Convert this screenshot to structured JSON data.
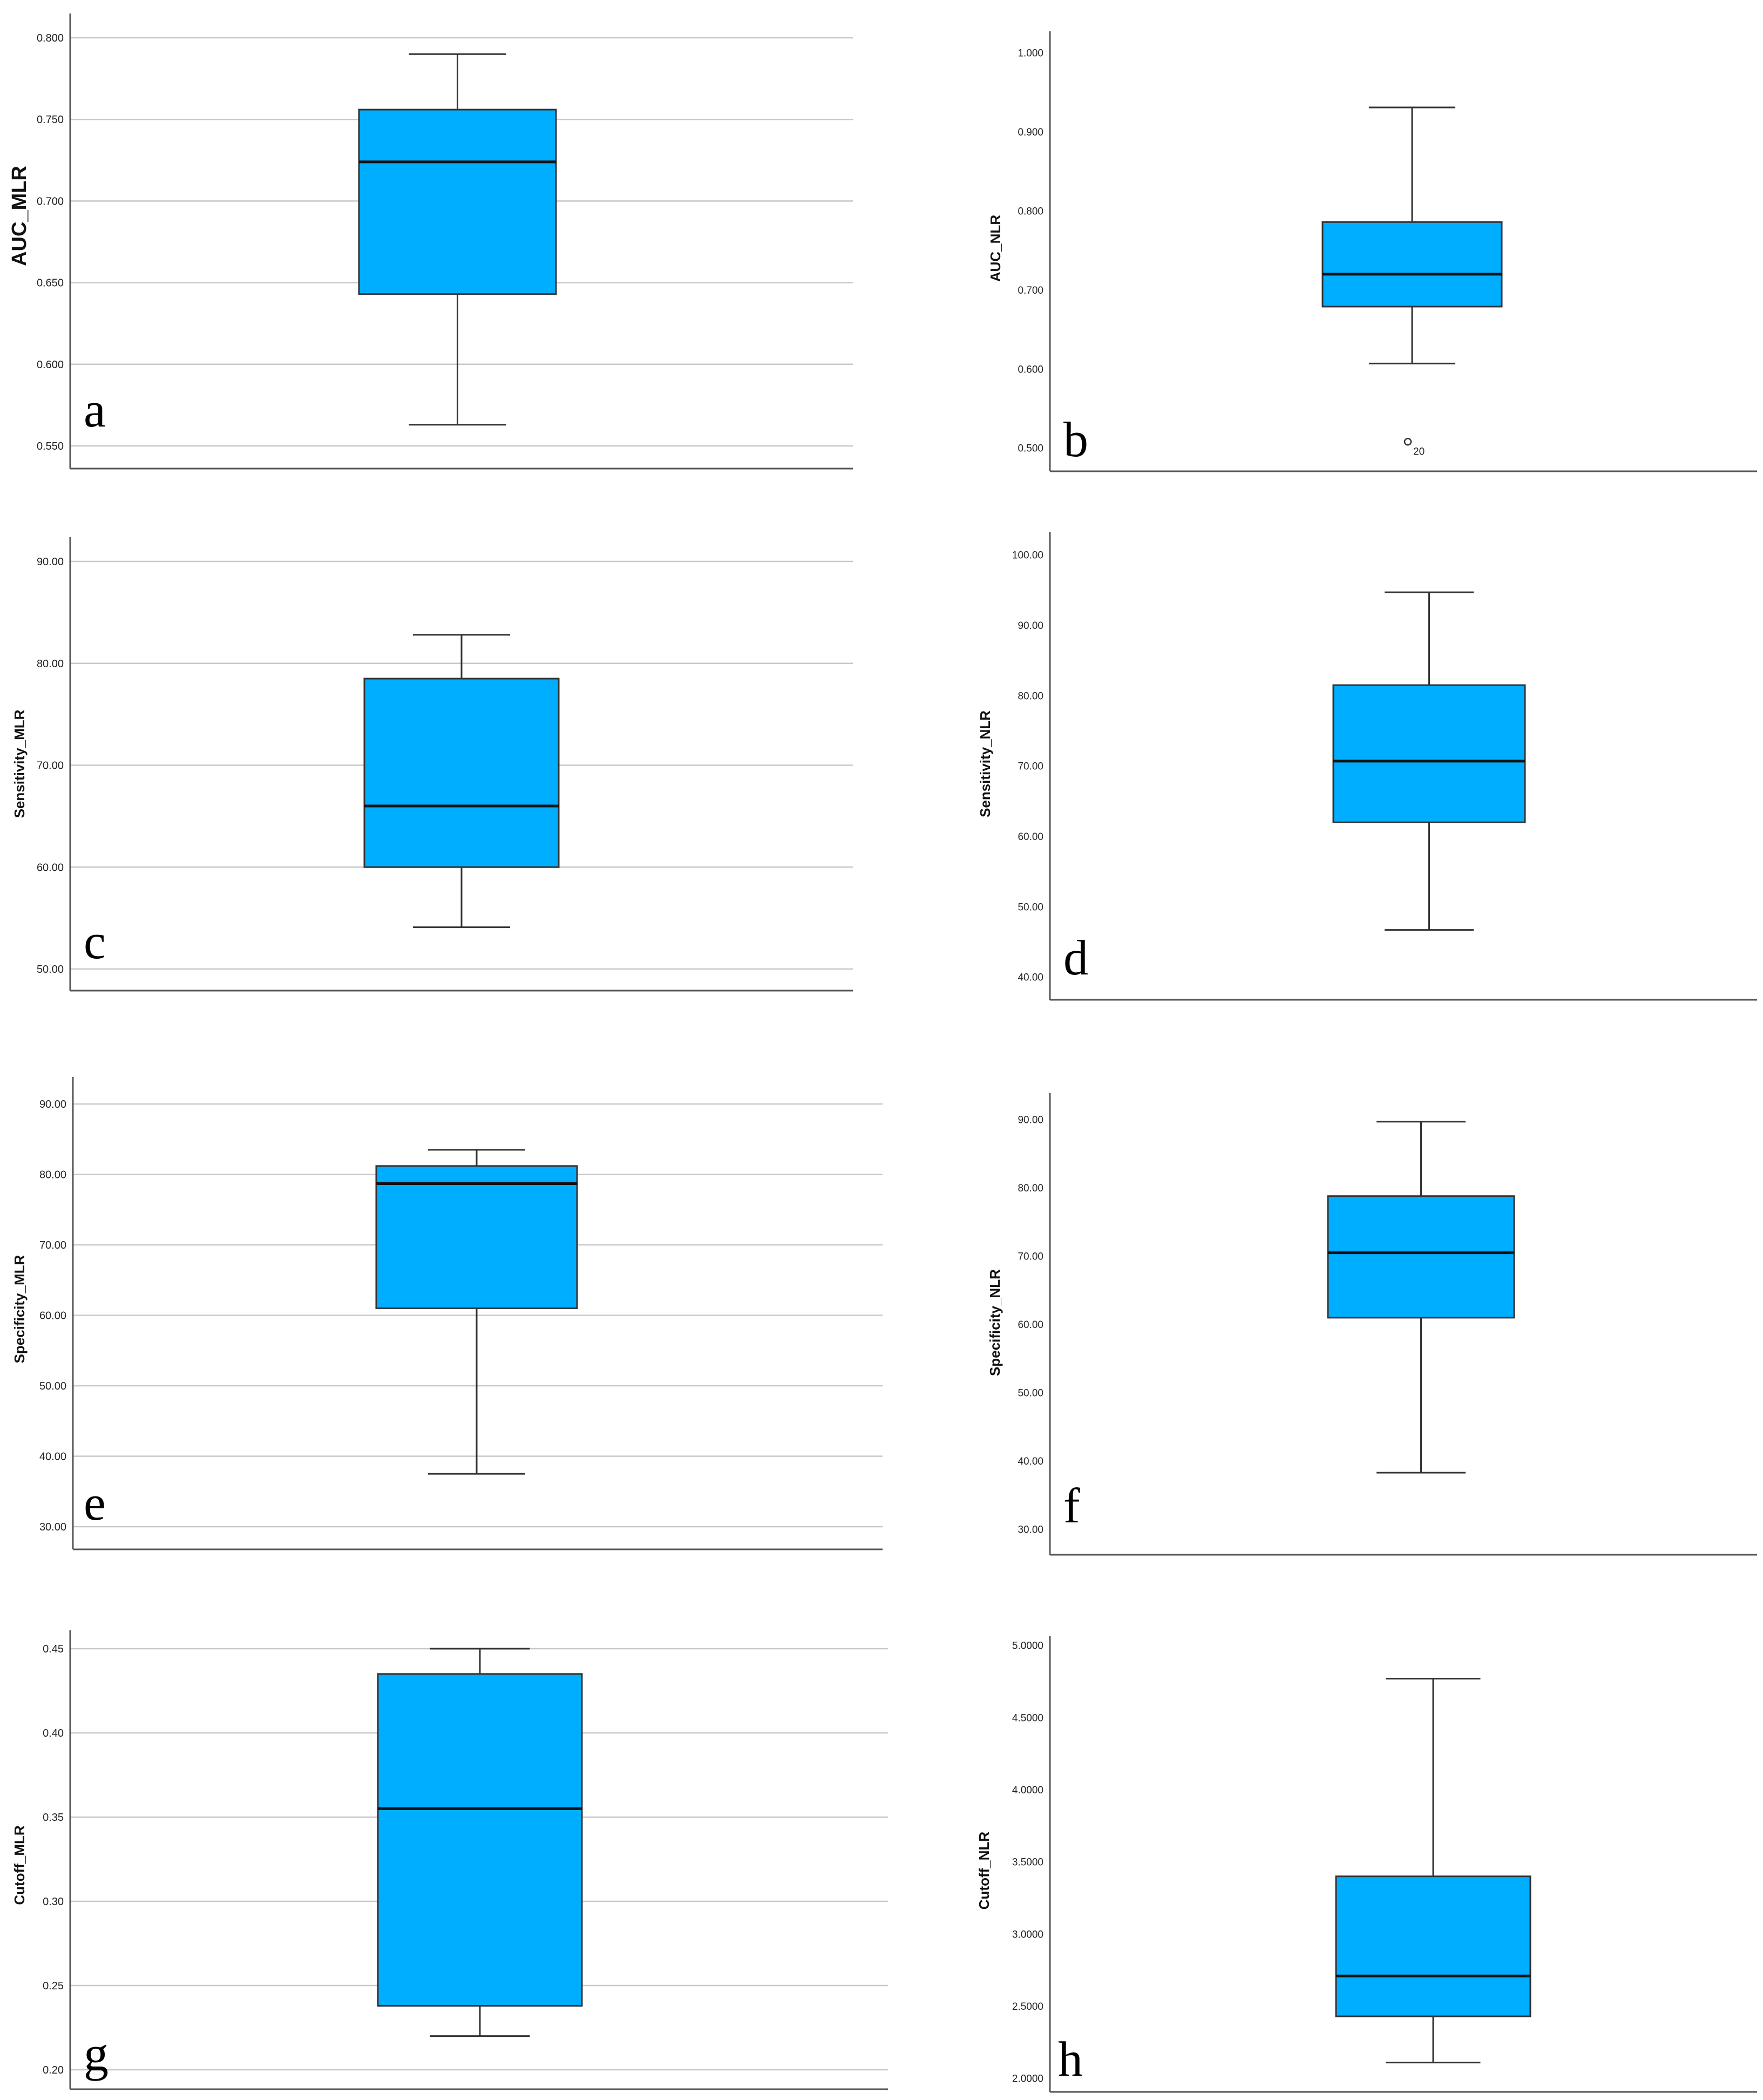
{
  "chart_data": [
    {
      "panel": "a",
      "type": "box",
      "ylabel": "AUC_MLR",
      "ylim": [
        0.55,
        0.8
      ],
      "ticks": [
        0.55,
        0.6,
        0.65,
        0.7,
        0.75,
        0.8
      ],
      "tick_labels": [
        "0.550",
        "0.600",
        "0.650",
        "0.700",
        "0.750",
        "0.800"
      ],
      "box": {
        "whisker_low": 0.563,
        "q1": 0.643,
        "median": 0.724,
        "q3": 0.756,
        "whisker_high": 0.79
      },
      "outliers": [],
      "grid": true
    },
    {
      "panel": "b",
      "type": "box",
      "ylabel": "AUC_NLR",
      "ylim": [
        0.5,
        1.0
      ],
      "ticks": [
        0.5,
        0.6,
        0.7,
        0.8,
        0.9,
        1.0
      ],
      "tick_labels": [
        "0.500",
        "0.600",
        "0.700",
        "0.800",
        "0.900",
        "1.000"
      ],
      "box": {
        "whisker_low": 0.607,
        "q1": 0.679,
        "median": 0.72,
        "q3": 0.786,
        "whisker_high": 0.931
      },
      "outliers": [
        {
          "value": 0.508,
          "label": "20"
        }
      ],
      "grid": false
    },
    {
      "panel": "c",
      "type": "box",
      "ylabel": "Sensitivity_MLR",
      "ylim": [
        50,
        90
      ],
      "ticks": [
        50,
        60,
        70,
        80,
        90
      ],
      "tick_labels": [
        "50.00",
        "60.00",
        "70.00",
        "80.00",
        "90.00"
      ],
      "box": {
        "whisker_low": 54.1,
        "q1": 60.0,
        "median": 66.0,
        "q3": 78.5,
        "whisker_high": 82.8
      },
      "outliers": [],
      "grid": true
    },
    {
      "panel": "d",
      "type": "box",
      "ylabel": "Sensitivity_NLR",
      "ylim": [
        40,
        100
      ],
      "ticks": [
        40,
        50,
        60,
        70,
        80,
        90,
        100
      ],
      "tick_labels": [
        "40.00",
        "50.00",
        "60.00",
        "70.00",
        "80.00",
        "90.00",
        "100.00"
      ],
      "box": {
        "whisker_low": 46.7,
        "q1": 62.0,
        "median": 70.7,
        "q3": 81.5,
        "whisker_high": 94.7
      },
      "outliers": [],
      "grid": false
    },
    {
      "panel": "e",
      "type": "box",
      "ylabel": "Specificity_MLR",
      "ylim": [
        30,
        90
      ],
      "ticks": [
        30,
        40,
        50,
        60,
        70,
        80,
        90
      ],
      "tick_labels": [
        "30.00",
        "40.00",
        "50.00",
        "60.00",
        "70.00",
        "80.00",
        "90.00"
      ],
      "box": {
        "whisker_low": 37.5,
        "q1": 61.0,
        "median": 78.7,
        "q3": 81.2,
        "whisker_high": 83.5
      },
      "outliers": [],
      "grid": true
    },
    {
      "panel": "f",
      "type": "box",
      "ylabel": "Specificity_NLR",
      "ylim": [
        30,
        90
      ],
      "ticks": [
        30,
        40,
        50,
        60,
        70,
        80,
        90
      ],
      "tick_labels": [
        "30.00",
        "40.00",
        "50.00",
        "60.00",
        "70.00",
        "80.00",
        "90.00"
      ],
      "box": {
        "whisker_low": 38.3,
        "q1": 61.0,
        "median": 70.5,
        "q3": 78.8,
        "whisker_high": 89.7
      },
      "outliers": [],
      "grid": false
    },
    {
      "panel": "g",
      "type": "box",
      "ylabel": "Cutoff_MLR",
      "ylim": [
        0.2,
        0.45
      ],
      "ticks": [
        0.2,
        0.25,
        0.3,
        0.35,
        0.4,
        0.45
      ],
      "tick_labels": [
        "0.20",
        "0.25",
        "0.30",
        "0.35",
        "0.40",
        "0.45"
      ],
      "box": {
        "whisker_low": 0.22,
        "q1": 0.238,
        "median": 0.355,
        "q3": 0.435,
        "whisker_high": 0.45
      },
      "outliers": [],
      "grid": true
    },
    {
      "panel": "h",
      "type": "box",
      "ylabel": "Cutoff_NLR",
      "ylim": [
        2.0,
        5.0
      ],
      "ticks": [
        2.0,
        2.5,
        3.0,
        3.5,
        4.0,
        4.5,
        5.0
      ],
      "tick_labels": [
        "2.0000",
        "2.5000",
        "3.0000",
        "3.5000",
        "4.0000",
        "4.5000",
        "5.0000"
      ],
      "box": {
        "whisker_low": 2.11,
        "q1": 2.43,
        "median": 2.71,
        "q3": 3.4,
        "whisker_high": 4.77
      },
      "outliers": [],
      "grid": false
    }
  ],
  "colors": {
    "box_fill": "#00AEFF",
    "stroke": "#333333",
    "grid": "#c8c8c8",
    "axis": "#555555"
  }
}
